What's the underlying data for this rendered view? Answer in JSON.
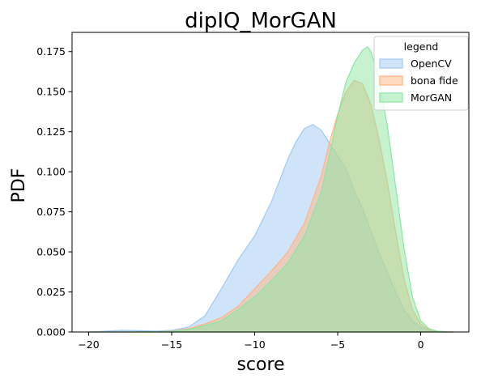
{
  "chart_data": {
    "type": "area",
    "title": "dipIQ_MorGAN",
    "xlabel": "score",
    "ylabel": "PDF",
    "xlim": [
      -21,
      2.9
    ],
    "ylim": [
      0,
      0.187
    ],
    "xticks": [
      -20,
      -15,
      -10,
      -5,
      0
    ],
    "xtick_labels": [
      "−20",
      "−15",
      "−10",
      "−5",
      "0"
    ],
    "yticks": [
      0.0,
      0.025,
      0.05,
      0.075,
      0.1,
      0.125,
      0.15,
      0.175
    ],
    "ytick_labels": [
      "0.000",
      "0.025",
      "0.050",
      "0.075",
      "0.100",
      "0.125",
      "0.150",
      "0.175"
    ],
    "grid": false,
    "legend": {
      "title": "legend",
      "position": "top-right"
    },
    "series": [
      {
        "name": "OpenCV",
        "color": "#a1c9f4",
        "x": [
          -20,
          -19,
          -18,
          -17,
          -16,
          -15,
          -14,
          -13,
          -12,
          -11,
          -10,
          -9,
          -8,
          -7.5,
          -7,
          -6.5,
          -6,
          -5.5,
          -5,
          -4.5,
          -4,
          -3.5,
          -3,
          -2.5,
          -2,
          -1.5,
          -1,
          -0.5,
          0,
          0.5,
          1,
          1.5,
          2
        ],
        "y": [
          0.0,
          0.0005,
          0.001,
          0.0008,
          0.0006,
          0.001,
          0.003,
          0.01,
          0.027,
          0.045,
          0.06,
          0.081,
          0.108,
          0.119,
          0.127,
          0.1295,
          0.126,
          0.118,
          0.11,
          0.102,
          0.088,
          0.077,
          0.063,
          0.049,
          0.037,
          0.025,
          0.014,
          0.007,
          0.003,
          0.0012,
          0.0005,
          0.0002,
          0.0
        ]
      },
      {
        "name": "bona fide",
        "color": "#ffb482",
        "x": [
          -20,
          -18,
          -16,
          -15,
          -14,
          -13,
          -12,
          -11,
          -10,
          -9,
          -8,
          -7,
          -6,
          -5.5,
          -5,
          -4.5,
          -4,
          -3.5,
          -3,
          -2.5,
          -2,
          -1.5,
          -1,
          -0.5,
          0,
          0.5,
          1,
          1.5,
          2
        ],
        "y": [
          0.0,
          0.0,
          0.0002,
          0.0005,
          0.002,
          0.005,
          0.009,
          0.016,
          0.027,
          0.038,
          0.05,
          0.068,
          0.097,
          0.118,
          0.136,
          0.15,
          0.157,
          0.155,
          0.142,
          0.12,
          0.093,
          0.062,
          0.033,
          0.014,
          0.005,
          0.0015,
          0.0004,
          0.0001,
          0.0
        ]
      },
      {
        "name": "MorGAN",
        "color": "#8de5a1",
        "x": [
          -20,
          -18,
          -16,
          -15,
          -14,
          -13,
          -12,
          -11,
          -10,
          -9,
          -8,
          -7,
          -6,
          -5.5,
          -5,
          -4.5,
          -4,
          -3.5,
          -3.2,
          -3,
          -2.5,
          -2,
          -1.5,
          -1,
          -0.5,
          0,
          0.5,
          1,
          1.5,
          2
        ],
        "y": [
          0.0,
          0.0,
          0.0002,
          0.0004,
          0.0015,
          0.004,
          0.007,
          0.014,
          0.022,
          0.032,
          0.043,
          0.06,
          0.087,
          0.11,
          0.135,
          0.156,
          0.168,
          0.176,
          0.178,
          0.175,
          0.158,
          0.128,
          0.09,
          0.052,
          0.022,
          0.007,
          0.002,
          0.0005,
          0.0001,
          0.0
        ]
      }
    ]
  }
}
